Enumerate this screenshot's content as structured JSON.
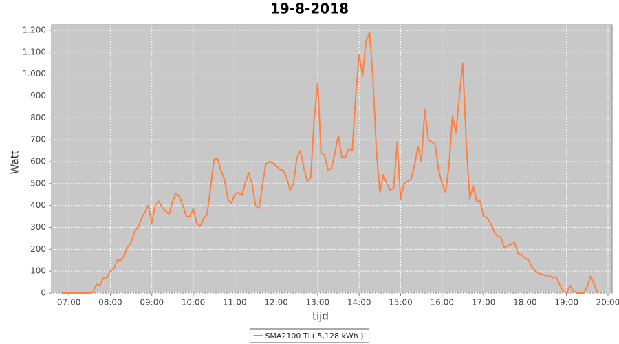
{
  "chart_data": {
    "type": "line",
    "title": "19-8-2018",
    "x_label": "tijd",
    "y_label": "Watt",
    "x": [
      "06:50",
      "07:00",
      "07:10",
      "07:20",
      "07:30",
      "07:35",
      "07:40",
      "07:45",
      "07:50",
      "07:55",
      "08:00",
      "08:05",
      "08:10",
      "08:15",
      "08:20",
      "08:25",
      "08:30",
      "08:35",
      "08:40",
      "08:45",
      "08:50",
      "08:55",
      "09:00",
      "09:05",
      "09:10",
      "09:15",
      "09:20",
      "09:25",
      "09:30",
      "09:35",
      "09:40",
      "09:45",
      "09:50",
      "09:55",
      "10:00",
      "10:05",
      "10:10",
      "10:15",
      "10:20",
      "10:25",
      "10:30",
      "10:35",
      "10:40",
      "10:45",
      "10:50",
      "10:55",
      "11:00",
      "11:05",
      "11:10",
      "11:15",
      "11:20",
      "11:25",
      "11:30",
      "11:35",
      "11:40",
      "11:45",
      "11:50",
      "11:55",
      "12:00",
      "12:05",
      "12:10",
      "12:15",
      "12:20",
      "12:25",
      "12:30",
      "12:35",
      "12:40",
      "12:45",
      "12:50",
      "12:55",
      "13:00",
      "13:05",
      "13:10",
      "13:15",
      "13:20",
      "13:25",
      "13:30",
      "13:35",
      "13:40",
      "13:45",
      "13:50",
      "13:55",
      "14:00",
      "14:05",
      "14:10",
      "14:15",
      "14:20",
      "14:25",
      "14:30",
      "14:35",
      "14:40",
      "14:45",
      "14:50",
      "14:55",
      "15:00",
      "15:05",
      "15:10",
      "15:15",
      "15:20",
      "15:25",
      "15:30",
      "15:35",
      "15:40",
      "15:45",
      "15:50",
      "15:55",
      "16:00",
      "16:05",
      "16:10",
      "16:15",
      "16:20",
      "16:25",
      "16:30",
      "16:35",
      "16:40",
      "16:45",
      "16:50",
      "16:55",
      "17:00",
      "17:05",
      "17:10",
      "17:15",
      "17:20",
      "17:25",
      "17:30",
      "17:35",
      "17:40",
      "17:45",
      "17:50",
      "17:55",
      "18:00",
      "18:05",
      "18:10",
      "18:15",
      "18:20",
      "18:25",
      "18:30",
      "18:35",
      "18:40",
      "18:45",
      "18:50",
      "18:55",
      "19:00",
      "19:05",
      "19:10",
      "19:15",
      "19:20",
      "19:25",
      "19:30",
      "19:35",
      "19:40",
      "19:45"
    ],
    "series": [
      {
        "name": "SMA2100 TL( 5,128 kWh )",
        "color": "#ff8040",
        "values": [
          0,
          0,
          0,
          0,
          0,
          5,
          40,
          35,
          70,
          70,
          100,
          110,
          150,
          150,
          170,
          210,
          230,
          280,
          300,
          340,
          370,
          400,
          320,
          400,
          420,
          390,
          375,
          360,
          420,
          455,
          440,
          400,
          350,
          350,
          385,
          320,
          305,
          340,
          360,
          480,
          610,
          615,
          560,
          520,
          430,
          410,
          450,
          460,
          445,
          500,
          550,
          500,
          400,
          385,
          490,
          590,
          600,
          595,
          580,
          565,
          560,
          530,
          470,
          500,
          620,
          650,
          570,
          510,
          530,
          800,
          960,
          640,
          630,
          560,
          570,
          640,
          720,
          620,
          620,
          660,
          650,
          900,
          1090,
          990,
          1150,
          1190,
          980,
          650,
          460,
          540,
          500,
          470,
          480,
          690,
          430,
          500,
          510,
          520,
          580,
          670,
          600,
          840,
          700,
          690,
          680,
          560,
          500,
          460,
          580,
          810,
          730,
          900,
          1050,
          680,
          430,
          490,
          420,
          420,
          350,
          345,
          320,
          280,
          260,
          255,
          210,
          215,
          225,
          230,
          180,
          175,
          160,
          150,
          120,
          100,
          90,
          85,
          80,
          80,
          70,
          75,
          40,
          10,
          0,
          35,
          10,
          0,
          0,
          0,
          30,
          80,
          40,
          0
        ]
      }
    ],
    "xlim": [
      "06:35",
      "20:06"
    ],
    "xticks": [
      "07:00",
      "08:00",
      "09:00",
      "10:00",
      "11:00",
      "12:00",
      "13:00",
      "14:00",
      "15:00",
      "16:00",
      "17:00",
      "18:00",
      "19:00",
      "20:00"
    ],
    "ylim": [
      0,
      1225
    ],
    "yticks": [
      0,
      100,
      200,
      300,
      400,
      500,
      600,
      700,
      800,
      900,
      {
        "value": 1000,
        "label": "1.000"
      },
      {
        "value": 1100,
        "label": "1.100"
      },
      {
        "value": 1200,
        "label": "1.200"
      }
    ],
    "grid": true,
    "legend": "bottom"
  }
}
